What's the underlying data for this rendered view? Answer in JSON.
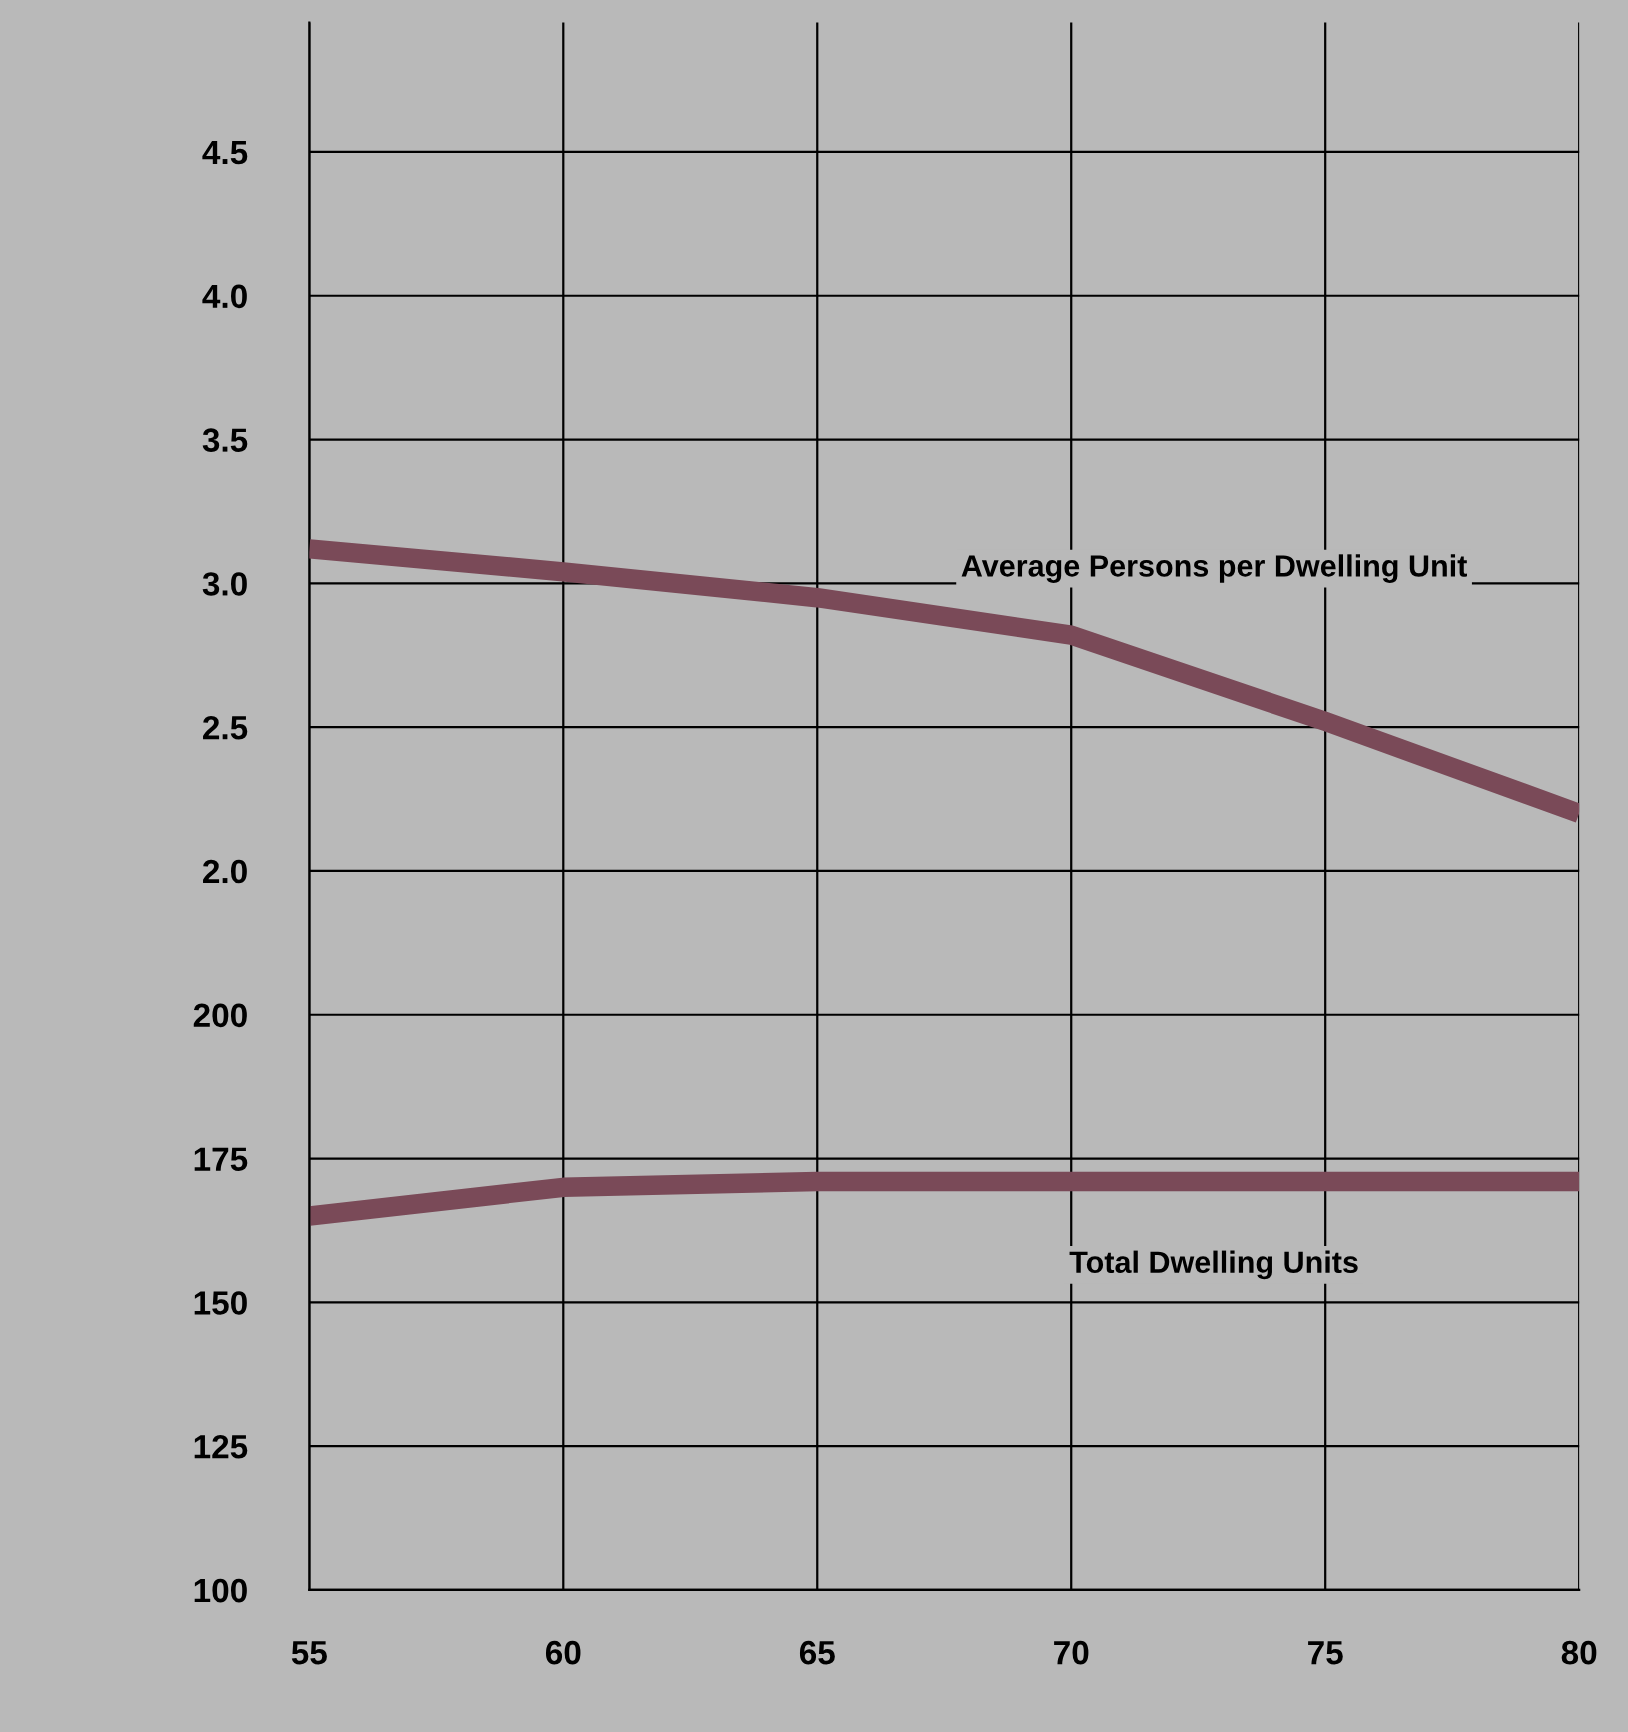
{
  "chart_data": {
    "type": "line",
    "x": [
      55,
      60,
      65,
      70,
      75,
      80
    ],
    "xlim": [
      55,
      80
    ],
    "xticks": [
      55,
      60,
      65,
      70,
      75,
      80
    ],
    "ylim": [
      100,
      372.5
    ],
    "yticks": [
      100,
      125,
      150,
      175,
      200
    ],
    "y2lim": [
      -0.5,
      4.95
    ],
    "y2ticks": [
      {
        "value": 2,
        "label": "2.0"
      },
      2.5,
      {
        "value": 3,
        "label": "3.0"
      },
      3.5,
      {
        "value": 4,
        "label": "4.0"
      },
      4.5
    ],
    "series": [
      {
        "name": "Average Persons per Dwelling Unit",
        "color": "#7a4a58",
        "axis": "y2",
        "values": [
          3.12,
          3.04,
          2.95,
          2.82,
          2.52,
          2.2
        ]
      },
      {
        "name": "Total Dwelling Units",
        "color": "#7a4a58",
        "values": [
          165,
          170,
          171,
          171,
          171,
          171
        ]
      }
    ],
    "grid": true,
    "line_style": "solid",
    "marker": "none",
    "legend": false
  }
}
